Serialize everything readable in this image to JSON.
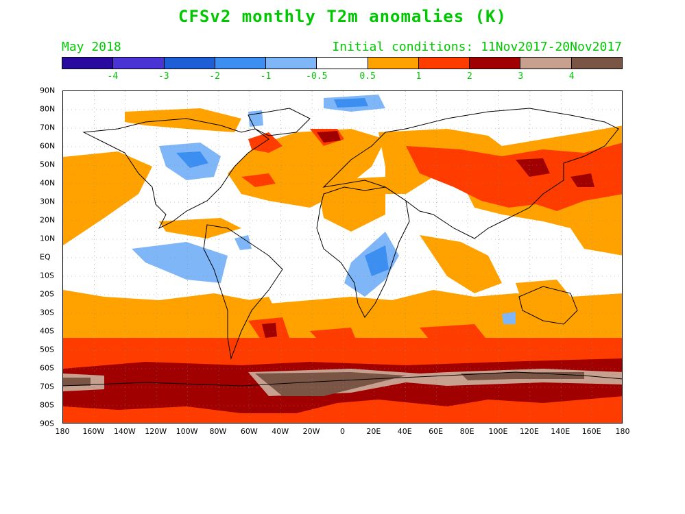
{
  "title": "CFSv2 monthly T2m anomalies (K)",
  "valid_month": "May 2018",
  "initial_conditions": "Initial conditions: 11Nov2017-20Nov2017",
  "legend": {
    "colors": [
      "#2a0a9e",
      "#4a35d4",
      "#1f5fd6",
      "#3c8ff0",
      "#7fb6f7",
      "#ffffff",
      "#ffa200",
      "#ff3c00",
      "#a00000",
      "#c8a090",
      "#7a5545"
    ],
    "labels": [
      "-4",
      "-3",
      "-2",
      "-1",
      "-0.5",
      "0.5",
      "1",
      "2",
      "3",
      "4"
    ]
  },
  "axes": {
    "lat_labels": [
      "90N",
      "80N",
      "70N",
      "60N",
      "50N",
      "40N",
      "30N",
      "20N",
      "10N",
      "EQ",
      "10S",
      "20S",
      "30S",
      "40S",
      "50S",
      "60S",
      "70S",
      "80S",
      "90S"
    ],
    "lon_labels": [
      "180",
      "160W",
      "140W",
      "120W",
      "100W",
      "80W",
      "60W",
      "40W",
      "20W",
      "0",
      "20E",
      "40E",
      "60E",
      "80E",
      "100E",
      "120E",
      "140E",
      "160E",
      "180"
    ]
  },
  "colors": {
    "text_green": "#00c800",
    "anom_05_1": "#ffa200",
    "anom_1_2": "#ff3c00",
    "anom_2_3": "#a00000",
    "anom_3_4": "#c8a090",
    "anom_gt4": "#7a5545",
    "anom_m05": "#7fb6f7",
    "anom_m1": "#3c8ff0",
    "anom_m2": "#1f5fd6",
    "coast": "#000000"
  }
}
